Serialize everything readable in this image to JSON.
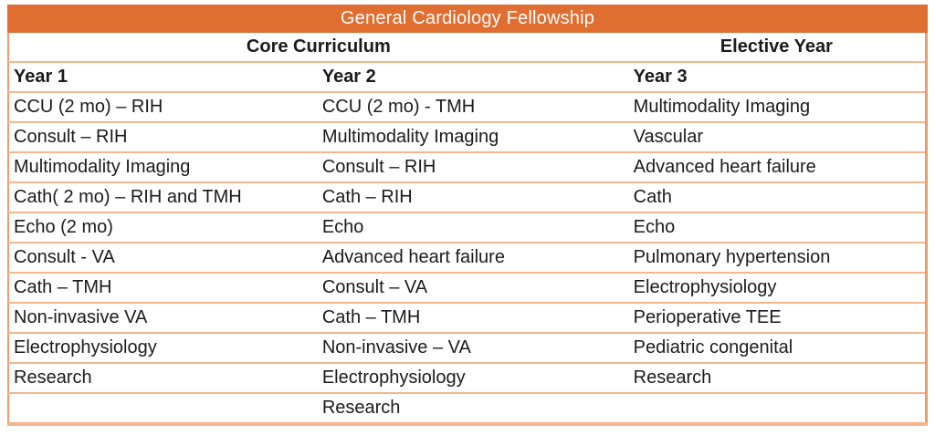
{
  "title": "General Cardiology Fellowship",
  "colors": {
    "header_bg": "#E06E30",
    "header_text": "#FFFFFF",
    "grid_line": "#F5B78E",
    "outer_border": "#EE9C6C",
    "bottom_border": "#F3B58B",
    "text": "#1B1B1B",
    "background": "#FFFFFF"
  },
  "table": {
    "group_headers": [
      {
        "label": "Core Curriculum",
        "span": 2
      },
      {
        "label": "Elective Year",
        "span": 1
      }
    ],
    "year_headers": [
      "Year 1",
      "Year 2",
      "Year 3"
    ],
    "rows": [
      [
        "CCU (2 mo) – RIH",
        "CCU (2 mo) - TMH",
        "Multimodality Imaging"
      ],
      [
        "Consult – RIH",
        "Multimodality Imaging",
        "Vascular"
      ],
      [
        "Multimodality Imaging",
        "Consult – RIH",
        "Advanced heart failure"
      ],
      [
        "Cath( 2 mo) – RIH and TMH",
        "Cath – RIH",
        "Cath"
      ],
      [
        "Echo (2 mo)",
        "Echo",
        "Echo"
      ],
      [
        "Consult - VA",
        "Advanced heart failure",
        "Pulmonary hypertension"
      ],
      [
        "Cath – TMH",
        "Consult – VA",
        "Electrophysiology"
      ],
      [
        "Non-invasive VA",
        "Cath – TMH",
        "Perioperative TEE"
      ],
      [
        "Electrophysiology",
        "Non-invasive – VA",
        "Pediatric congenital"
      ],
      [
        "Research",
        "Electrophysiology",
        "Research"
      ],
      [
        "",
        "Research",
        ""
      ]
    ]
  }
}
